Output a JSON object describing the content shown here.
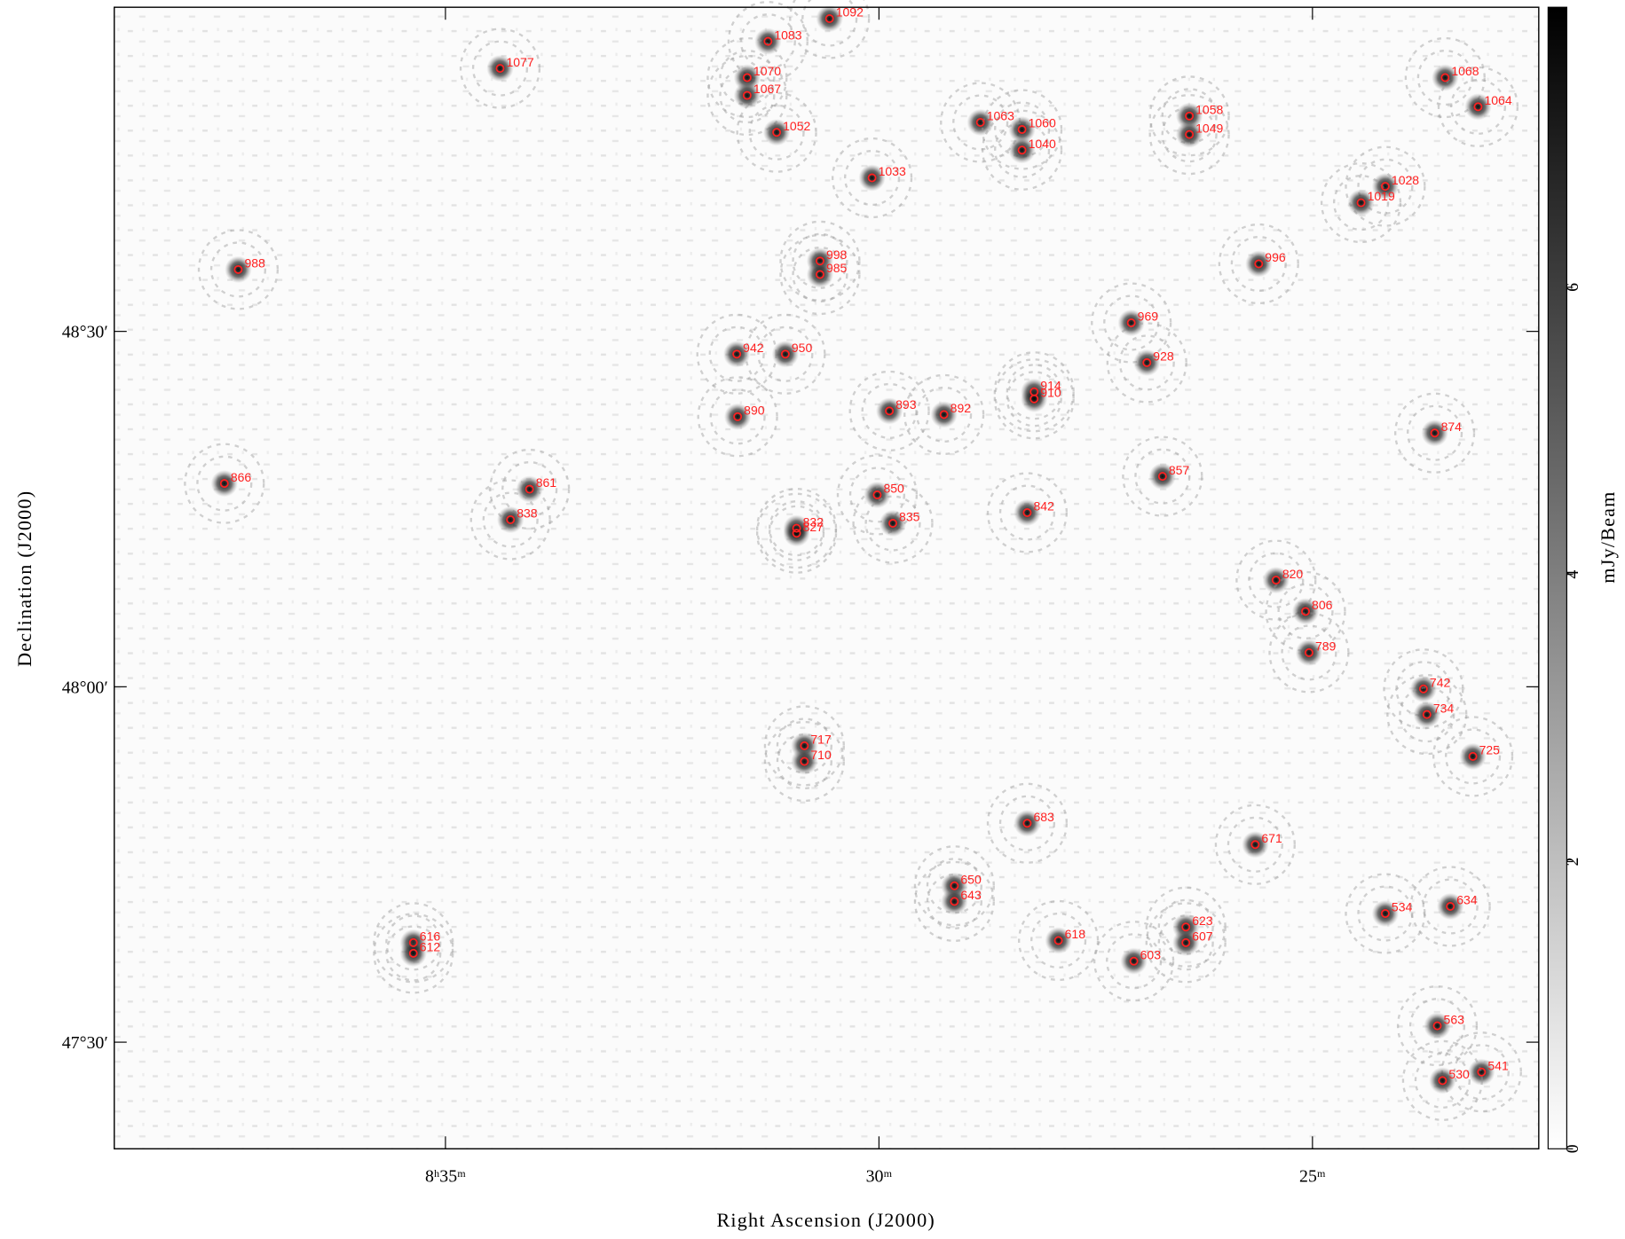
{
  "chart_data": {
    "type": "scatter",
    "x_label": "Right Ascension (J2000)",
    "y_label": "Declination (J2000)",
    "colorbar_label": "mJy/Beam",
    "xlim": [
      38.82,
      22.39
    ],
    "ylim": [
      47.35,
      48.956
    ],
    "xticks": [
      {
        "value": 35,
        "label": "8ʰ35ᵐ"
      },
      {
        "value": 30,
        "label": "30ᵐ"
      },
      {
        "value": 25,
        "label": "25ᵐ"
      }
    ],
    "yticks": [
      {
        "value": 48.5,
        "label": "48°30′"
      },
      {
        "value": 48.0,
        "label": "48°00′"
      },
      {
        "value": 47.5,
        "label": "47°30′"
      }
    ],
    "clim": [
      0,
      7.95
    ],
    "cticks": [
      0,
      2,
      4,
      6
    ],
    "color": "#ff2020",
    "points": [
      {
        "label": "1077",
        "x": 34.37,
        "y": 48.87
      },
      {
        "label": "1092",
        "x": 30.57,
        "y": 48.94
      },
      {
        "label": "1083",
        "x": 31.28,
        "y": 48.908
      },
      {
        "label": "1070",
        "x": 31.52,
        "y": 48.857
      },
      {
        "label": "1067",
        "x": 31.52,
        "y": 48.832
      },
      {
        "label": "1052",
        "x": 31.18,
        "y": 48.78
      },
      {
        "label": "1063",
        "x": 28.83,
        "y": 48.794
      },
      {
        "label": "1060",
        "x": 28.35,
        "y": 48.784
      },
      {
        "label": "1040",
        "x": 28.35,
        "y": 48.755
      },
      {
        "label": "1058",
        "x": 26.42,
        "y": 48.803
      },
      {
        "label": "1049",
        "x": 26.42,
        "y": 48.777
      },
      {
        "label": "1068",
        "x": 23.47,
        "y": 48.857
      },
      {
        "label": "1064",
        "x": 23.09,
        "y": 48.816
      },
      {
        "label": "1033",
        "x": 30.08,
        "y": 48.716
      },
      {
        "label": "1028",
        "x": 24.16,
        "y": 48.704
      },
      {
        "label": "1019",
        "x": 24.44,
        "y": 48.681
      },
      {
        "label": "988",
        "x": 37.39,
        "y": 48.587
      },
      {
        "label": "998",
        "x": 30.68,
        "y": 48.599
      },
      {
        "label": "985",
        "x": 30.68,
        "y": 48.58
      },
      {
        "label": "996",
        "x": 25.62,
        "y": 48.595
      },
      {
        "label": "969",
        "x": 27.09,
        "y": 48.512
      },
      {
        "label": "942",
        "x": 31.64,
        "y": 48.468
      },
      {
        "label": "950",
        "x": 31.08,
        "y": 48.468
      },
      {
        "label": "928",
        "x": 26.91,
        "y": 48.456
      },
      {
        "label": "914",
        "x": 28.21,
        "y": 48.415
      },
      {
        "label": "910",
        "x": 28.21,
        "y": 48.405
      },
      {
        "label": "893",
        "x": 29.88,
        "y": 48.388
      },
      {
        "label": "892",
        "x": 29.25,
        "y": 48.383
      },
      {
        "label": "890",
        "x": 31.63,
        "y": 48.38
      },
      {
        "label": "874",
        "x": 23.59,
        "y": 48.357
      },
      {
        "label": "866",
        "x": 37.55,
        "y": 48.286
      },
      {
        "label": "861",
        "x": 34.03,
        "y": 48.278
      },
      {
        "label": "857",
        "x": 26.73,
        "y": 48.296
      },
      {
        "label": "850",
        "x": 30.02,
        "y": 48.27
      },
      {
        "label": "842",
        "x": 28.29,
        "y": 48.245
      },
      {
        "label": "838",
        "x": 34.25,
        "y": 48.235
      },
      {
        "label": "835",
        "x": 29.84,
        "y": 48.23
      },
      {
        "label": "832",
        "x": 30.95,
        "y": 48.223
      },
      {
        "label": "827",
        "x": 30.95,
        "y": 48.216
      },
      {
        "label": "820",
        "x": 25.42,
        "y": 48.15
      },
      {
        "label": "806",
        "x": 25.08,
        "y": 48.106
      },
      {
        "label": "789",
        "x": 25.04,
        "y": 48.048
      },
      {
        "label": "742",
        "x": 23.72,
        "y": 47.997
      },
      {
        "label": "734",
        "x": 23.68,
        "y": 47.961
      },
      {
        "label": "725",
        "x": 23.15,
        "y": 47.902
      },
      {
        "label": "717",
        "x": 30.86,
        "y": 47.917
      },
      {
        "label": "710",
        "x": 30.86,
        "y": 47.895
      },
      {
        "label": "683",
        "x": 28.29,
        "y": 47.808
      },
      {
        "label": "671",
        "x": 25.66,
        "y": 47.778
      },
      {
        "label": "650",
        "x": 29.13,
        "y": 47.72
      },
      {
        "label": "643",
        "x": 29.13,
        "y": 47.698
      },
      {
        "label": "634",
        "x": 23.41,
        "y": 47.691
      },
      {
        "label": "534",
        "x": 24.16,
        "y": 47.681
      },
      {
        "label": "623",
        "x": 26.46,
        "y": 47.662
      },
      {
        "label": "607",
        "x": 26.46,
        "y": 47.64
      },
      {
        "label": "618",
        "x": 27.93,
        "y": 47.643
      },
      {
        "label": "616",
        "x": 35.37,
        "y": 47.64
      },
      {
        "label": "612",
        "x": 35.37,
        "y": 47.625
      },
      {
        "label": "603",
        "x": 27.06,
        "y": 47.614
      },
      {
        "label": "563",
        "x": 23.56,
        "y": 47.523
      },
      {
        "label": "541",
        "x": 23.05,
        "y": 47.458
      },
      {
        "label": "530",
        "x": 23.5,
        "y": 47.446
      }
    ]
  }
}
